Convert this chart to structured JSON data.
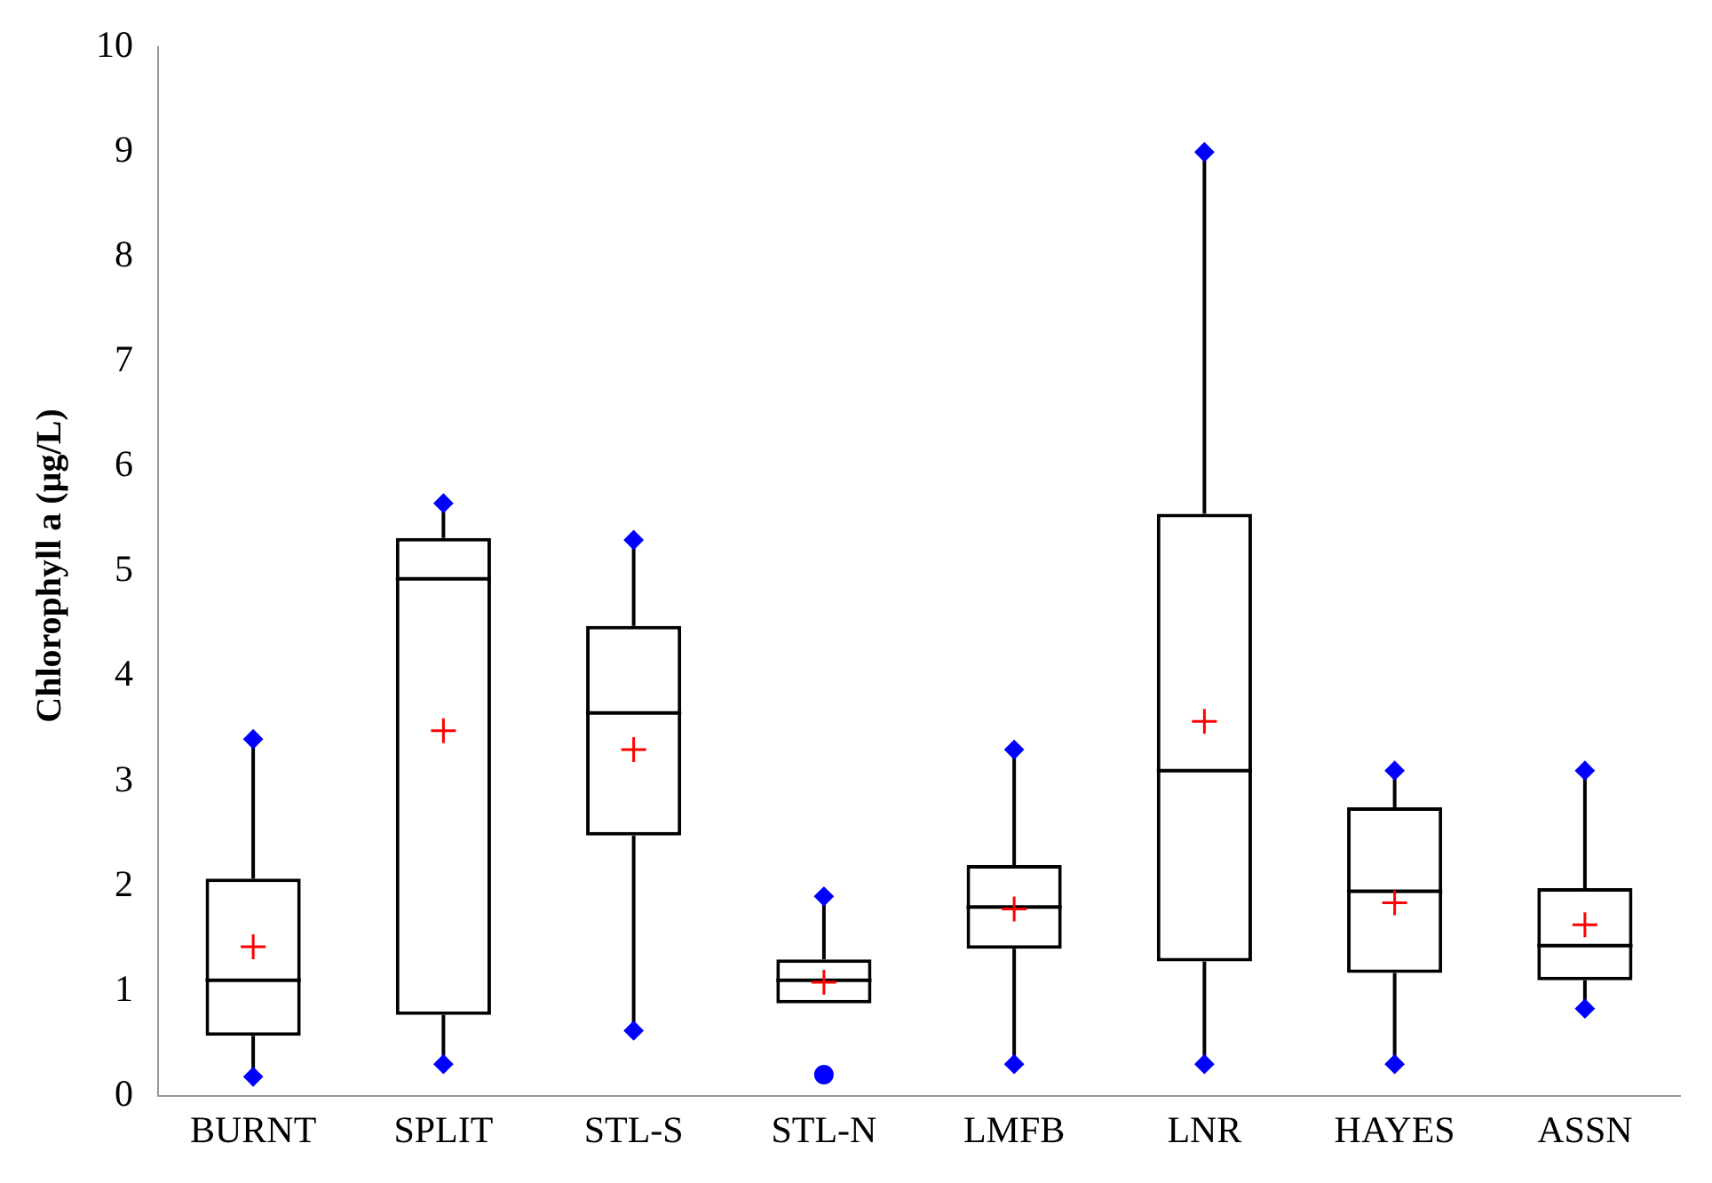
{
  "chart_data": {
    "type": "box",
    "ylabel": "Chlorophyll a (µg/L)",
    "categories": [
      "BURNT",
      "SPLIT",
      "STL-S",
      "STL-N",
      "LMFB",
      "LNR",
      "HAYES",
      "ASSN"
    ],
    "boxes": [
      {
        "low": 0.18,
        "q1": 0.57,
        "median": 1.1,
        "q3": 2.07,
        "high": 3.4,
        "mean": 1.42
      },
      {
        "low": 0.3,
        "q1": 0.77,
        "median": 4.93,
        "q3": 5.32,
        "high": 5.65,
        "mean": 3.48
      },
      {
        "low": 0.62,
        "q1": 2.48,
        "median": 3.65,
        "q3": 4.48,
        "high": 5.3,
        "mean": 3.3
      },
      {
        "low": 0.88,
        "q1": 0.88,
        "median": 1.1,
        "q3": 1.3,
        "high": 1.9,
        "mean": 1.08,
        "outliers": [
          0.2
        ]
      },
      {
        "low": 0.3,
        "q1": 1.4,
        "median": 1.8,
        "q3": 2.2,
        "high": 3.3,
        "mean": 1.78
      },
      {
        "low": 0.3,
        "q1": 1.28,
        "median": 3.1,
        "q3": 5.55,
        "high": 9.0,
        "mean": 3.57
      },
      {
        "low": 0.3,
        "q1": 1.17,
        "median": 1.95,
        "q3": 2.75,
        "high": 3.1,
        "mean": 1.84
      },
      {
        "low": 0.83,
        "q1": 1.1,
        "median": 1.43,
        "q3": 1.98,
        "high": 3.1,
        "mean": 1.63
      }
    ],
    "ylim": [
      0,
      10
    ],
    "yticks": [
      0,
      1,
      2,
      3,
      4,
      5,
      6,
      7,
      8,
      9,
      10
    ],
    "series": [
      {
        "type": "scatter",
        "color": "#0000ff",
        "marker": "diamond",
        "x": [
          "BURNT",
          "SPLIT",
          "STL-S",
          "STL-N",
          "LMFB",
          "LNR",
          "HAYES",
          "ASSN",
          "BURNT",
          "SPLIT",
          "STL-S",
          "LMFB",
          "LNR",
          "HAYES",
          "ASSN"
        ],
        "values": [
          3.4,
          5.65,
          5.3,
          1.9,
          3.3,
          9.0,
          3.1,
          3.1,
          0.18,
          0.3,
          0.62,
          0.3,
          0.3,
          0.3,
          0.83
        ]
      }
    ],
    "grid": false,
    "legend": false
  }
}
